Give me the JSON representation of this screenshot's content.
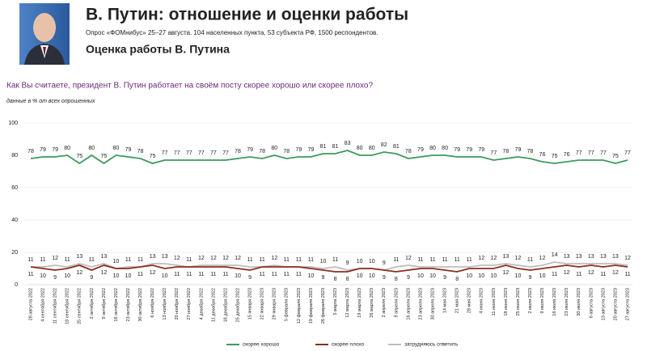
{
  "chart_data": {
    "type": "line",
    "title": "В. Путин: отношение и оценки работы",
    "subtitle": "Опрос «ФОМнибус» 25–27 августа. 104 населенных пункта, 53 субъекта РФ, 1500 респондентов.",
    "section": "Оценка работы В. Путина",
    "question": "Как Вы считаете, президент В. Путин работает на своём посту скорее хорошо или скорее плохо?",
    "note": "данные в % от всех опрошенных",
    "categories": [
      "28 августа 2022",
      "4 сентября 2022",
      "11 сентября 2022",
      "18 сентября 2022",
      "25 сентября 2022",
      "2 октября 2022",
      "9 октября 2022",
      "16 октября 2022",
      "23 октября 2022",
      "30 октября 2022",
      "6 ноября 2022",
      "13 ноября 2022",
      "20 ноября 2022",
      "27 ноября 2022",
      "4 декабря 2022",
      "11 декабря 2022",
      "18 декабря 2022",
      "25 декабря 2022",
      "15 января 2023",
      "22 января 2023",
      "29 января 2023",
      "5 февраля 2023",
      "12 февраля 2023",
      "19 февраля 2023",
      "26 февраля 2023",
      "5 марта 2023",
      "12 марта 2023",
      "19 марта 2023",
      "26 марта 2023",
      "2 апреля 2023",
      "9 апреля 2023",
      "16 апреля 2023",
      "23 апреля 2023",
      "30 апреля 2023",
      "14 мая 2023",
      "21 мая 2023",
      "28 мая 2023",
      "4 июня 2023",
      "11 июня 2023",
      "18 июня 2023",
      "25 июня 2023",
      "2 июля 2023",
      "9 июля 2023",
      "16 июля 2023",
      "23 июля 2023",
      "30 июля 2023",
      "6 августа 2023",
      "13 августа 2023",
      "20 августа 2023",
      "27 августа 2023"
    ],
    "series": [
      {
        "name": "скорее хорошо",
        "color": "#3f9a5c",
        "label_pos": "above",
        "values": [
          78,
          79,
          79,
          80,
          75,
          80,
          75,
          80,
          79,
          78,
          75,
          77,
          77,
          77,
          77,
          77,
          77,
          78,
          79,
          78,
          80,
          78,
          79,
          79,
          81,
          81,
          83,
          80,
          80,
          82,
          81,
          78,
          79,
          80,
          80,
          79,
          79,
          79,
          77,
          78,
          79,
          78,
          76,
          75,
          76,
          77,
          77,
          77,
          75,
          77
        ]
      },
      {
        "name": "скорее плохо",
        "color": "#8b2e22",
        "label_pos": "below",
        "values": [
          11,
          10,
          9,
          10,
          12,
          9,
          12,
          10,
          10,
          11,
          12,
          10,
          11,
          11,
          11,
          11,
          11,
          10,
          9,
          11,
          11,
          11,
          11,
          10,
          9,
          8,
          8,
          10,
          10,
          9,
          8,
          9,
          10,
          10,
          9,
          8,
          10,
          10,
          10,
          12,
          10,
          9,
          10,
          11,
          12,
          11,
          12,
          11,
          12,
          11
        ]
      },
      {
        "name": "затрудняюсь ответить",
        "color": "#bdbdbd",
        "label_pos": "above",
        "values": [
          11,
          11,
          12,
          11,
          13,
          11,
          13,
          10,
          11,
          11,
          13,
          13,
          12,
          11,
          12,
          12,
          12,
          12,
          11,
          11,
          12,
          11,
          11,
          11,
          10,
          11,
          9,
          10,
          10,
          9,
          11,
          12,
          11,
          11,
          11,
          11,
          11,
          12,
          12,
          13,
          12,
          11,
          12,
          14,
          13,
          13,
          13,
          13,
          13,
          12
        ]
      }
    ],
    "ylim": [
      0,
      100
    ],
    "yticks": [
      0,
      20,
      40,
      60,
      80,
      100
    ],
    "grid": true
  }
}
